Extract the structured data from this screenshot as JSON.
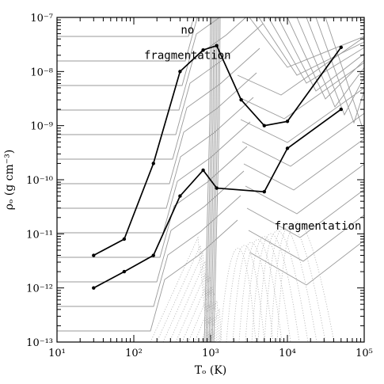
{
  "chart_data": {
    "type": "line",
    "xscale": "log",
    "yscale": "log",
    "xlim": [
      10,
      100000
    ],
    "ylim": [
      1e-13,
      1e-07
    ],
    "xlabel": "Tₒ (K)",
    "ylabel": "ρₒ (g cm⁻³)",
    "xticks": [
      {
        "value": 10,
        "label": "10¹"
      },
      {
        "value": 100,
        "label": "10²"
      },
      {
        "value": 1000,
        "label": "10³"
      },
      {
        "value": 10000,
        "label": "10⁴"
      },
      {
        "value": 100000,
        "label": "10⁵"
      }
    ],
    "yticks": [
      {
        "value": 1e-13,
        "label": "10⁻¹³"
      },
      {
        "value": 1e-12,
        "label": "10⁻¹²"
      },
      {
        "value": 1e-11,
        "label": "10⁻¹¹"
      },
      {
        "value": 1e-10,
        "label": "10⁻¹⁰"
      },
      {
        "value": 1e-09,
        "label": "10⁻⁹"
      },
      {
        "value": 1e-08,
        "label": "10⁻⁸"
      },
      {
        "value": 1e-07,
        "label": "10⁻⁷"
      }
    ],
    "annotations": [
      {
        "text": "no",
        "x": 500,
        "y": 5e-08
      },
      {
        "text": "fragmentation",
        "x": 500,
        "y": 1.7e-08
      },
      {
        "text": "fragmentation",
        "x": 25000,
        "y": 1.2e-11
      }
    ],
    "series": [
      {
        "x": [
          30,
          75,
          180,
          400,
          800,
          1200,
          2500,
          5000,
          10000,
          50000
        ],
        "y": [
          4e-12,
          8e-12,
          2e-10,
          1e-08,
          2.5e-08,
          3e-08,
          3e-09,
          1e-09,
          1.2e-09,
          2.8e-08
        ]
      },
      {
        "x": [
          30,
          75,
          180,
          400,
          800,
          1200,
          5000,
          10000,
          50000
        ],
        "y": [
          1e-12,
          2e-12,
          4e-12,
          5e-11,
          1.5e-10,
          7e-11,
          6e-11,
          3.8e-10,
          2e-09
        ]
      }
    ],
    "grid": false,
    "legend": "none"
  }
}
